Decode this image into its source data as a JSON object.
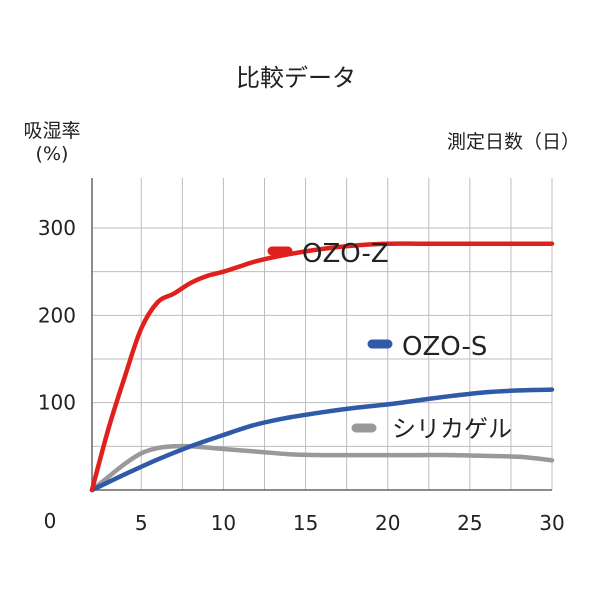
{
  "chart_data": {
    "type": "line",
    "title": "比較データ",
    "ylabel_line1": "吸湿率",
    "ylabel_line2": "(%)",
    "xlabel": "測定日数（日）",
    "x_origin_label": "0",
    "xlim": [
      2,
      30
    ],
    "ylim": [
      0,
      300
    ],
    "x_ticks": [
      5,
      10,
      15,
      20,
      25,
      30
    ],
    "y_ticks": [
      100,
      200,
      300
    ],
    "grid": true,
    "legend_placement": "inline",
    "series": [
      {
        "name": "OZO-Z",
        "color": "#e0201c",
        "x": [
          2,
          3,
          4,
          5,
          6,
          7,
          8,
          9,
          10,
          11,
          12,
          14,
          16,
          18,
          20,
          22,
          24,
          26,
          28,
          30
        ],
        "y": [
          0,
          70,
          130,
          185,
          215,
          225,
          237,
          245,
          250,
          256,
          262,
          270,
          276,
          280,
          282,
          282,
          282,
          282,
          282,
          282
        ]
      },
      {
        "name": "OZO-S",
        "color": "#2f5aa8",
        "x": [
          2,
          4,
          6,
          8,
          10,
          12,
          14,
          16,
          18,
          20,
          22,
          24,
          26,
          28,
          30
        ],
        "y": [
          0,
          18,
          35,
          50,
          63,
          75,
          83,
          89,
          94,
          98,
          103,
          108,
          112,
          114,
          115
        ]
      },
      {
        "name": "シリカゲル",
        "color": "#999999",
        "x": [
          2,
          3,
          4,
          5,
          6,
          7,
          8,
          10,
          12,
          14,
          16,
          18,
          20,
          22,
          24,
          26,
          28,
          30
        ],
        "y": [
          0,
          15,
          30,
          42,
          48,
          50,
          50,
          47,
          44,
          41,
          40,
          40,
          40,
          40,
          40,
          39,
          38,
          34
        ]
      }
    ],
    "legend": [
      {
        "name": "OZO-Z",
        "color": "#e0201c"
      },
      {
        "name": "OZO-S",
        "color": "#2f5aa8"
      },
      {
        "name": "シリカゲル",
        "color": "#999999"
      }
    ]
  }
}
